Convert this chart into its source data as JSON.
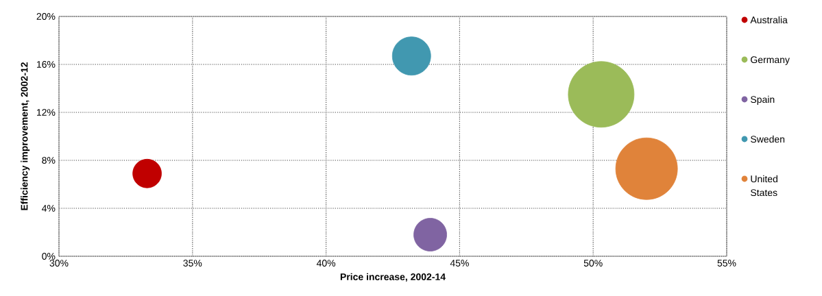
{
  "chart_data": {
    "type": "bubble",
    "xlabel": "Price increase, 2002-14",
    "ylabel": "Efficiency improvement, 2002-12",
    "series": [
      {
        "name": "Australia",
        "color": "#c00000",
        "x": [
          33.3
        ],
        "values": [
          6.9
        ],
        "sizes": [
          0.19
        ]
      },
      {
        "name": "Germany",
        "color": "#9bbb59",
        "x": [
          50.3
        ],
        "values": [
          13.5
        ],
        "sizes": [
          1
        ]
      },
      {
        "name": "Spain",
        "color": "#8064a2",
        "x": [
          43.9
        ],
        "values": [
          1.8
        ],
        "sizes": [
          0.25
        ]
      },
      {
        "name": "Sweden",
        "color": "#4198b0",
        "x": [
          43.2
        ],
        "values": [
          16.7
        ],
        "sizes": [
          0.34
        ]
      },
      {
        "name": "United States",
        "color": "#e0833a",
        "x": [
          52.0
        ],
        "values": [
          7.3
        ],
        "sizes": [
          0.88
        ]
      }
    ],
    "xlim": [
      30,
      55
    ],
    "xticks": [
      {
        "value": 30,
        "label": "30%"
      },
      {
        "value": 35,
        "label": "35%"
      },
      {
        "value": 40,
        "label": "40%"
      },
      {
        "value": 45,
        "label": "45%"
      },
      {
        "value": 50,
        "label": "50%"
      },
      {
        "value": 55,
        "label": "55%"
      }
    ],
    "ylim": [
      0,
      20
    ],
    "yticks": [
      {
        "value": 0,
        "label": "0%"
      },
      {
        "value": 4,
        "label": "4%"
      },
      {
        "value": 8,
        "label": "8%"
      },
      {
        "value": 12,
        "label": "12%"
      },
      {
        "value": 16,
        "label": "16%"
      },
      {
        "value": 20,
        "label": "20%"
      }
    ],
    "grid": true,
    "legend": "right"
  }
}
